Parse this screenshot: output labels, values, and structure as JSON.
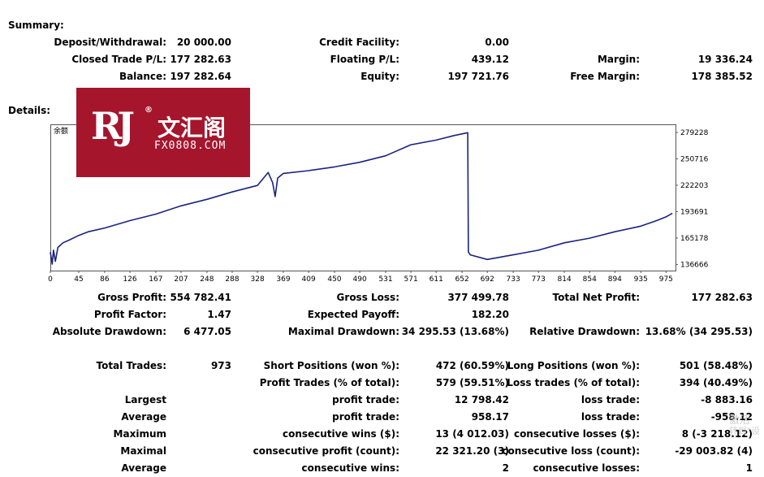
{
  "summary": {
    "title": "Summary:",
    "deposit_label": "Deposit/Withdrawal:",
    "deposit_value": "20 000.00",
    "credit_label": "Credit Facility:",
    "credit_value": "0.00",
    "closed_label": "Closed Trade P/L:",
    "closed_value": "177 282.63",
    "floating_label": "Floating P/L:",
    "floating_value": "439.12",
    "margin_label": "Margin:",
    "margin_value": "19 336.24",
    "balance_label": "Balance:",
    "balance_value": "197 282.64",
    "equity_label": "Equity:",
    "equity_value": "197 721.76",
    "free_margin_label": "Free Margin:",
    "free_margin_value": "178 385.52"
  },
  "details": {
    "title": "Details:"
  },
  "logo": {
    "mark": "RJ",
    "reg": "®",
    "cn": "文汇阁",
    "site": "FX0808.COM"
  },
  "chart_data": {
    "type": "line",
    "series_label": "余额",
    "line_color": "#1a237e",
    "xlim": [
      0,
      990
    ],
    "ylim": [
      130000,
      288000
    ],
    "x_ticks": [
      0,
      45,
      86,
      126,
      167,
      207,
      248,
      288,
      328,
      369,
      409,
      450,
      490,
      531,
      571,
      611,
      652,
      692,
      733,
      773,
      814,
      854,
      894,
      935,
      975
    ],
    "y_ticks": [
      279228,
      250716,
      222203,
      193691,
      165178,
      136666
    ],
    "series": [
      {
        "x": [
          0,
          3,
          5,
          8,
          12,
          20,
          30,
          45,
          60,
          86,
          126,
          167,
          207,
          248,
          288,
          328,
          345,
          352,
          356,
          360,
          369,
          409,
          450,
          490,
          531,
          571,
          611,
          640,
          661,
          662,
          665,
          692,
          733,
          773,
          814,
          854,
          894,
          935,
          960,
          975,
          985
        ],
        "y": [
          150000,
          137000,
          152000,
          140000,
          155000,
          160000,
          163000,
          168000,
          172000,
          176000,
          184000,
          191000,
          200000,
          207000,
          215000,
          222000,
          236000,
          225000,
          210000,
          230000,
          235000,
          238000,
          242000,
          247000,
          254000,
          266000,
          271000,
          276000,
          279000,
          150000,
          147000,
          142000,
          147000,
          152000,
          160000,
          165000,
          172000,
          178000,
          184000,
          188000,
          192000
        ]
      }
    ]
  },
  "stats": {
    "gross_profit_label": "Gross Profit:",
    "gross_profit_value": "554 782.41",
    "gross_loss_label": "Gross Loss:",
    "gross_loss_value": "377 499.78",
    "total_net_profit_label": "Total Net Profit:",
    "total_net_profit_value": "177 282.63",
    "profit_factor_label": "Profit Factor:",
    "profit_factor_value": "1.47",
    "expected_payoff_label": "Expected Payoff:",
    "expected_payoff_value": "182.20",
    "abs_drawdown_label": "Absolute Drawdown:",
    "abs_drawdown_value": "6 477.05",
    "max_drawdown_label": "Maximal Drawdown:",
    "max_drawdown_value": "34 295.53 (13.68%)",
    "rel_drawdown_label": "Relative Drawdown:",
    "rel_drawdown_value": "13.68% (34 295.53)",
    "total_trades_label": "Total Trades:",
    "total_trades_value": "973",
    "short_label": "Short Positions (won %):",
    "short_value": "472 (60.59%)",
    "long_label": "Long Positions (won %):",
    "long_value": "501 (58.48%)",
    "profit_trades_label": "Profit Trades (% of total):",
    "profit_trades_value": "579 (59.51%)",
    "loss_trades_label": "Loss trades (% of total):",
    "loss_trades_value": "394 (40.49%)",
    "largest_label": "Largest",
    "largest_profit_label": "profit trade:",
    "largest_profit_value": "12 798.42",
    "largest_loss_label": "loss trade:",
    "largest_loss_value": "-8 883.16",
    "average_label": "Average",
    "average_profit_label": "profit trade:",
    "average_profit_value": "958.17",
    "average_loss_label": "loss trade:",
    "average_loss_value": "-958.12",
    "maximum_label": "Maximum",
    "max_wins_label": "consecutive wins ($):",
    "max_wins_value": "13 (4 012.03)",
    "max_losses_label": "consecutive losses ($):",
    "max_losses_value": "8 (-3 218.12)",
    "maximal_label": "Maximal",
    "maximal_profit_label": "consecutive profit (count):",
    "maximal_profit_value": "22 321.20 (3)",
    "maximal_loss_label": "consecutive loss (count):",
    "maximal_loss_value": "-29 003.82 (4)",
    "average2_label": "Average",
    "avg_wins_label": "consecutive wins:",
    "avg_wins_value": "2",
    "avg_losses_label": "consecutive losses:",
    "avg_losses_value": "1"
  },
  "watermark": {
    "line1": "激活",
    "line2": "转到\"设"
  }
}
